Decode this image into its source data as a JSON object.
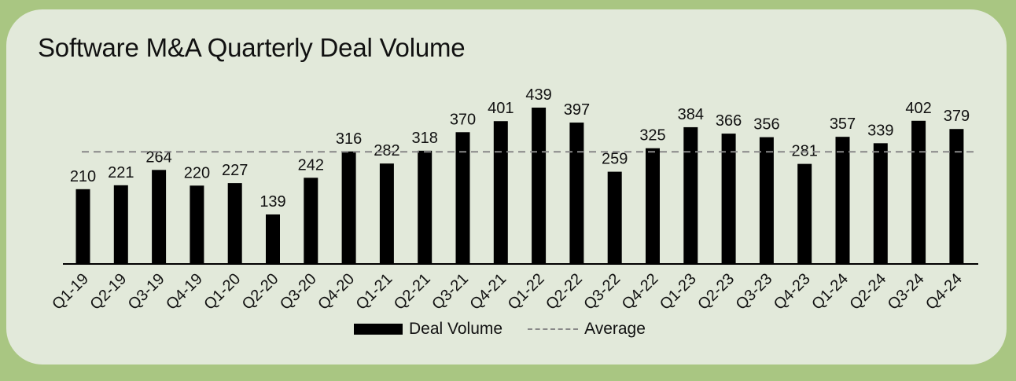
{
  "chart_data": {
    "type": "bar",
    "title": "Software M&A Quarterly Deal Volume",
    "categories": [
      "Q1-19",
      "Q2-19",
      "Q3-19",
      "Q4-19",
      "Q1-20",
      "Q2-20",
      "Q3-20",
      "Q4-20",
      "Q1-21",
      "Q2-21",
      "Q3-21",
      "Q4-21",
      "Q1-22",
      "Q2-22",
      "Q3-22",
      "Q4-22",
      "Q1-23",
      "Q2-23",
      "Q3-23",
      "Q4-23",
      "Q1-24",
      "Q2-24",
      "Q3-24",
      "Q4-24"
    ],
    "series": [
      {
        "name": "Deal Volume",
        "values": [
          210,
          221,
          264,
          220,
          227,
          139,
          242,
          316,
          282,
          318,
          370,
          401,
          439,
          397,
          259,
          325,
          384,
          366,
          356,
          281,
          357,
          339,
          402,
          379
        ],
        "color": "#000000"
      }
    ],
    "reference_lines": [
      {
        "name": "Average",
        "value": 315,
        "style": "dashed",
        "color": "#888888"
      }
    ],
    "ylim": [
      0,
      439
    ],
    "show_data_labels": true,
    "grid": false,
    "legend_position": "bottom"
  }
}
